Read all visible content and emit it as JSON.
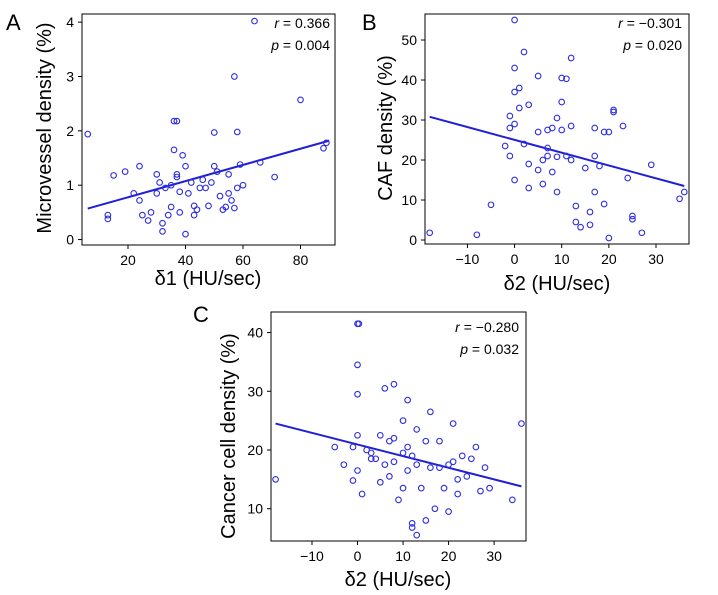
{
  "chart_data": [
    {
      "type": "scatter",
      "panel": "A",
      "xlabel": "δ1 (HU/sec)",
      "ylabel": "Microvessel density (%)",
      "xlim": [
        4,
        92
      ],
      "ylim": [
        -0.1,
        4.15
      ],
      "xticks": [
        20,
        40,
        60,
        80
      ],
      "yticks": [
        0,
        1,
        2,
        3,
        4
      ],
      "stats": [
        {
          "label": "r",
          "value": " = 0.366"
        },
        {
          "label": "p",
          "value": " = 0.004"
        }
      ],
      "regression": {
        "x": [
          6,
          90
        ],
        "y": [
          0.57,
          1.82
        ]
      },
      "marker_color": "#2d2de0",
      "points": [
        [
          6,
          1.94
        ],
        [
          13,
          0.45
        ],
        [
          13,
          0.38
        ],
        [
          15,
          1.18
        ],
        [
          19,
          1.25
        ],
        [
          22,
          0.85
        ],
        [
          24,
          1.35
        ],
        [
          24,
          0.72
        ],
        [
          25,
          0.45
        ],
        [
          27,
          0.35
        ],
        [
          28,
          0.5
        ],
        [
          30,
          1.2
        ],
        [
          30,
          0.85
        ],
        [
          31,
          1.05
        ],
        [
          32,
          0.3
        ],
        [
          32,
          0.15
        ],
        [
          33,
          0.95
        ],
        [
          34,
          0.45
        ],
        [
          35,
          1.0
        ],
        [
          35,
          0.6
        ],
        [
          36,
          1.65
        ],
        [
          36,
          2.18
        ],
        [
          37,
          2.18
        ],
        [
          37,
          1.2
        ],
        [
          37,
          1.15
        ],
        [
          38,
          0.88
        ],
        [
          38,
          0.5
        ],
        [
          39,
          1.55
        ],
        [
          40,
          1.35
        ],
        [
          40,
          0.1
        ],
        [
          41,
          0.85
        ],
        [
          42,
          1.05
        ],
        [
          43,
          0.45
        ],
        [
          43,
          0.62
        ],
        [
          44,
          0.55
        ],
        [
          45,
          0.95
        ],
        [
          46,
          1.1
        ],
        [
          47,
          0.95
        ],
        [
          48,
          0.62
        ],
        [
          49,
          1.05
        ],
        [
          50,
          1.35
        ],
        [
          50,
          1.97
        ],
        [
          51,
          1.25
        ],
        [
          52,
          0.8
        ],
        [
          53,
          0.55
        ],
        [
          54,
          0.6
        ],
        [
          55,
          1.2
        ],
        [
          55,
          0.85
        ],
        [
          56,
          0.72
        ],
        [
          57,
          0.58
        ],
        [
          57,
          3.0
        ],
        [
          58,
          1.98
        ],
        [
          58,
          0.95
        ],
        [
          59,
          1.38
        ],
        [
          60,
          1.0
        ],
        [
          64,
          4.02
        ],
        [
          66,
          1.42
        ],
        [
          71,
          1.15
        ],
        [
          80,
          2.57
        ],
        [
          88,
          1.68
        ],
        [
          89,
          1.78
        ]
      ]
    },
    {
      "type": "scatter",
      "panel": "B",
      "xlabel": "δ2 (HU/sec)",
      "ylabel": "CAF density (%)",
      "xlim": [
        -19,
        37
      ],
      "ylim": [
        -1,
        56.5
      ],
      "xticks": [
        -10,
        0,
        10,
        20,
        30
      ],
      "yticks": [
        0,
        10,
        20,
        30,
        40,
        50
      ],
      "stats": [
        {
          "label": "r",
          "value": " = −0.301"
        },
        {
          "label": "p",
          "value": " = 0.020"
        }
      ],
      "regression": {
        "x": [
          -18,
          36
        ],
        "y": [
          30.8,
          13.5
        ]
      },
      "marker_color": "#2d2de0",
      "points": [
        [
          -18,
          1.8
        ],
        [
          -8,
          1.3
        ],
        [
          -5,
          8.8
        ],
        [
          -2,
          23.5
        ],
        [
          -1,
          31
        ],
        [
          -1,
          28
        ],
        [
          -1,
          21
        ],
        [
          0,
          55
        ],
        [
          0,
          43
        ],
        [
          0,
          37
        ],
        [
          0,
          29
        ],
        [
          0,
          15
        ],
        [
          1,
          38
        ],
        [
          1,
          33
        ],
        [
          2,
          47
        ],
        [
          2,
          24
        ],
        [
          3,
          13
        ],
        [
          3,
          19
        ],
        [
          3,
          33.8
        ],
        [
          5,
          41
        ],
        [
          5,
          27
        ],
        [
          5,
          17.5
        ],
        [
          6,
          14
        ],
        [
          6,
          20
        ],
        [
          7,
          27.5
        ],
        [
          7,
          23
        ],
        [
          7,
          21
        ],
        [
          8,
          28
        ],
        [
          8,
          17
        ],
        [
          9,
          30.5
        ],
        [
          9,
          20.8
        ],
        [
          9,
          12
        ],
        [
          10,
          40.5
        ],
        [
          10,
          34.5
        ],
        [
          10,
          27.5
        ],
        [
          11,
          40.3
        ],
        [
          11,
          21
        ],
        [
          12,
          45.5
        ],
        [
          12,
          28.5
        ],
        [
          12,
          20
        ],
        [
          13,
          8.5
        ],
        [
          13,
          4.5
        ],
        [
          14,
          3.2
        ],
        [
          15,
          18
        ],
        [
          16,
          7
        ],
        [
          16,
          3.8
        ],
        [
          17,
          28
        ],
        [
          17,
          21
        ],
        [
          17,
          12
        ],
        [
          18,
          18.5
        ],
        [
          19,
          27
        ],
        [
          19,
          9
        ],
        [
          20,
          0.5
        ],
        [
          20,
          27
        ],
        [
          21,
          32.5
        ],
        [
          21,
          32
        ],
        [
          23,
          28.5
        ],
        [
          24,
          15.5
        ],
        [
          25,
          5.2
        ],
        [
          25,
          6
        ],
        [
          27,
          1.8
        ],
        [
          29,
          18.8
        ],
        [
          35,
          10.3
        ],
        [
          36,
          12
        ]
      ]
    },
    {
      "type": "scatter",
      "panel": "C",
      "xlabel": "δ2 (HU/sec)",
      "ylabel": "Cancer cell density (%)",
      "xlim": [
        -19,
        37
      ],
      "ylim": [
        4.5,
        43.5
      ],
      "xticks": [
        -10,
        0,
        10,
        20,
        30
      ],
      "yticks": [
        10,
        20,
        30,
        40
      ],
      "stats": [
        {
          "label": "r",
          "value": " = −0.280"
        },
        {
          "label": "p",
          "value": " = 0.032"
        }
      ],
      "regression": {
        "x": [
          -18,
          36
        ],
        "y": [
          24.5,
          13.8
        ]
      },
      "marker_color": "#2d2de0",
      "points": [
        [
          -18,
          15
        ],
        [
          -5,
          20.5
        ],
        [
          -3,
          17.5
        ],
        [
          -1,
          14.8
        ],
        [
          -1,
          20.5
        ],
        [
          0,
          41.5
        ],
        [
          0.3,
          41.5
        ],
        [
          0,
          34.5
        ],
        [
          0,
          29.5
        ],
        [
          0,
          22.5
        ],
        [
          0,
          16.5
        ],
        [
          1,
          12.5
        ],
        [
          2,
          20
        ],
        [
          3,
          19.5
        ],
        [
          3,
          18.5
        ],
        [
          4,
          18.5
        ],
        [
          5,
          14.5
        ],
        [
          5,
          22.5
        ],
        [
          6,
          17.5
        ],
        [
          6,
          30.5
        ],
        [
          7,
          21.5
        ],
        [
          7,
          15.5
        ],
        [
          8,
          31.2
        ],
        [
          8,
          22
        ],
        [
          8,
          18
        ],
        [
          9,
          11.5
        ],
        [
          10,
          25
        ],
        [
          10,
          19.5
        ],
        [
          10,
          13.5
        ],
        [
          11,
          28.5
        ],
        [
          11,
          20.5
        ],
        [
          11,
          16.5
        ],
        [
          12,
          19
        ],
        [
          12,
          7.5
        ],
        [
          12,
          6.8
        ],
        [
          13,
          23.5
        ],
        [
          13,
          17.5
        ],
        [
          13,
          5.5
        ],
        [
          14,
          13.5
        ],
        [
          15,
          21.5
        ],
        [
          15,
          8
        ],
        [
          16,
          26.5
        ],
        [
          16,
          17
        ],
        [
          17,
          10
        ],
        [
          18,
          21.5
        ],
        [
          18,
          17
        ],
        [
          19,
          13.5
        ],
        [
          20,
          17.5
        ],
        [
          20,
          9.5
        ],
        [
          21,
          24.5
        ],
        [
          21,
          18
        ],
        [
          22,
          15
        ],
        [
          22,
          12.5
        ],
        [
          23,
          19
        ],
        [
          24,
          15.5
        ],
        [
          25,
          18.5
        ],
        [
          26,
          20.5
        ],
        [
          27,
          13
        ],
        [
          28,
          17
        ],
        [
          29,
          13.5
        ],
        [
          34,
          11.5
        ],
        [
          36,
          24.5
        ]
      ]
    }
  ]
}
